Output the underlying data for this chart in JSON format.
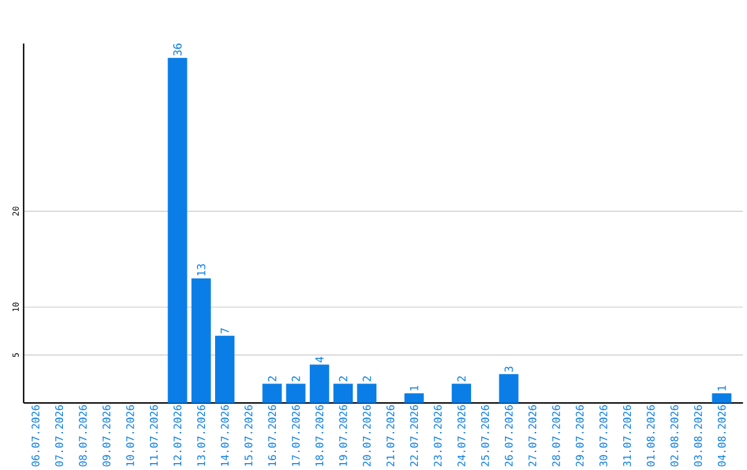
{
  "chart_data": {
    "type": "bar",
    "color": "#0a7ee6",
    "categories": [
      "06.07.2026",
      "07.07.2026",
      "08.07.2026",
      "09.07.2026",
      "10.07.2026",
      "11.07.2026",
      "12.07.2026",
      "13.07.2026",
      "14.07.2026",
      "15.07.2026",
      "16.07.2026",
      "17.07.2026",
      "18.07.2026",
      "19.07.2026",
      "20.07.2026",
      "21.07.2026",
      "22.07.2026",
      "23.07.2026",
      "24.07.2026",
      "25.07.2026",
      "26.07.2026",
      "27.07.2026",
      "28.07.2026",
      "29.07.2026",
      "30.07.2026",
      "31.07.2026",
      "01.08.2026",
      "02.08.2026",
      "03.08.2026",
      "04.08.2026"
    ],
    "values": [
      0,
      0,
      0,
      0,
      0,
      0,
      36,
      13,
      7,
      0,
      2,
      2,
      4,
      2,
      2,
      0,
      1,
      0,
      2,
      0,
      3,
      0,
      0,
      0,
      0,
      0,
      0,
      0,
      0,
      1
    ],
    "value_labels": [
      null,
      null,
      null,
      null,
      null,
      null,
      "36",
      "13",
      "7",
      null,
      "2",
      "2",
      "4",
      "2",
      "2",
      null,
      "1",
      null,
      "2",
      null,
      "3",
      null,
      null,
      null,
      null,
      null,
      null,
      null,
      null,
      "1"
    ],
    "ylim": [
      0,
      37.5
    ],
    "yticks": [
      5,
      10,
      20
    ],
    "grid": "y"
  }
}
